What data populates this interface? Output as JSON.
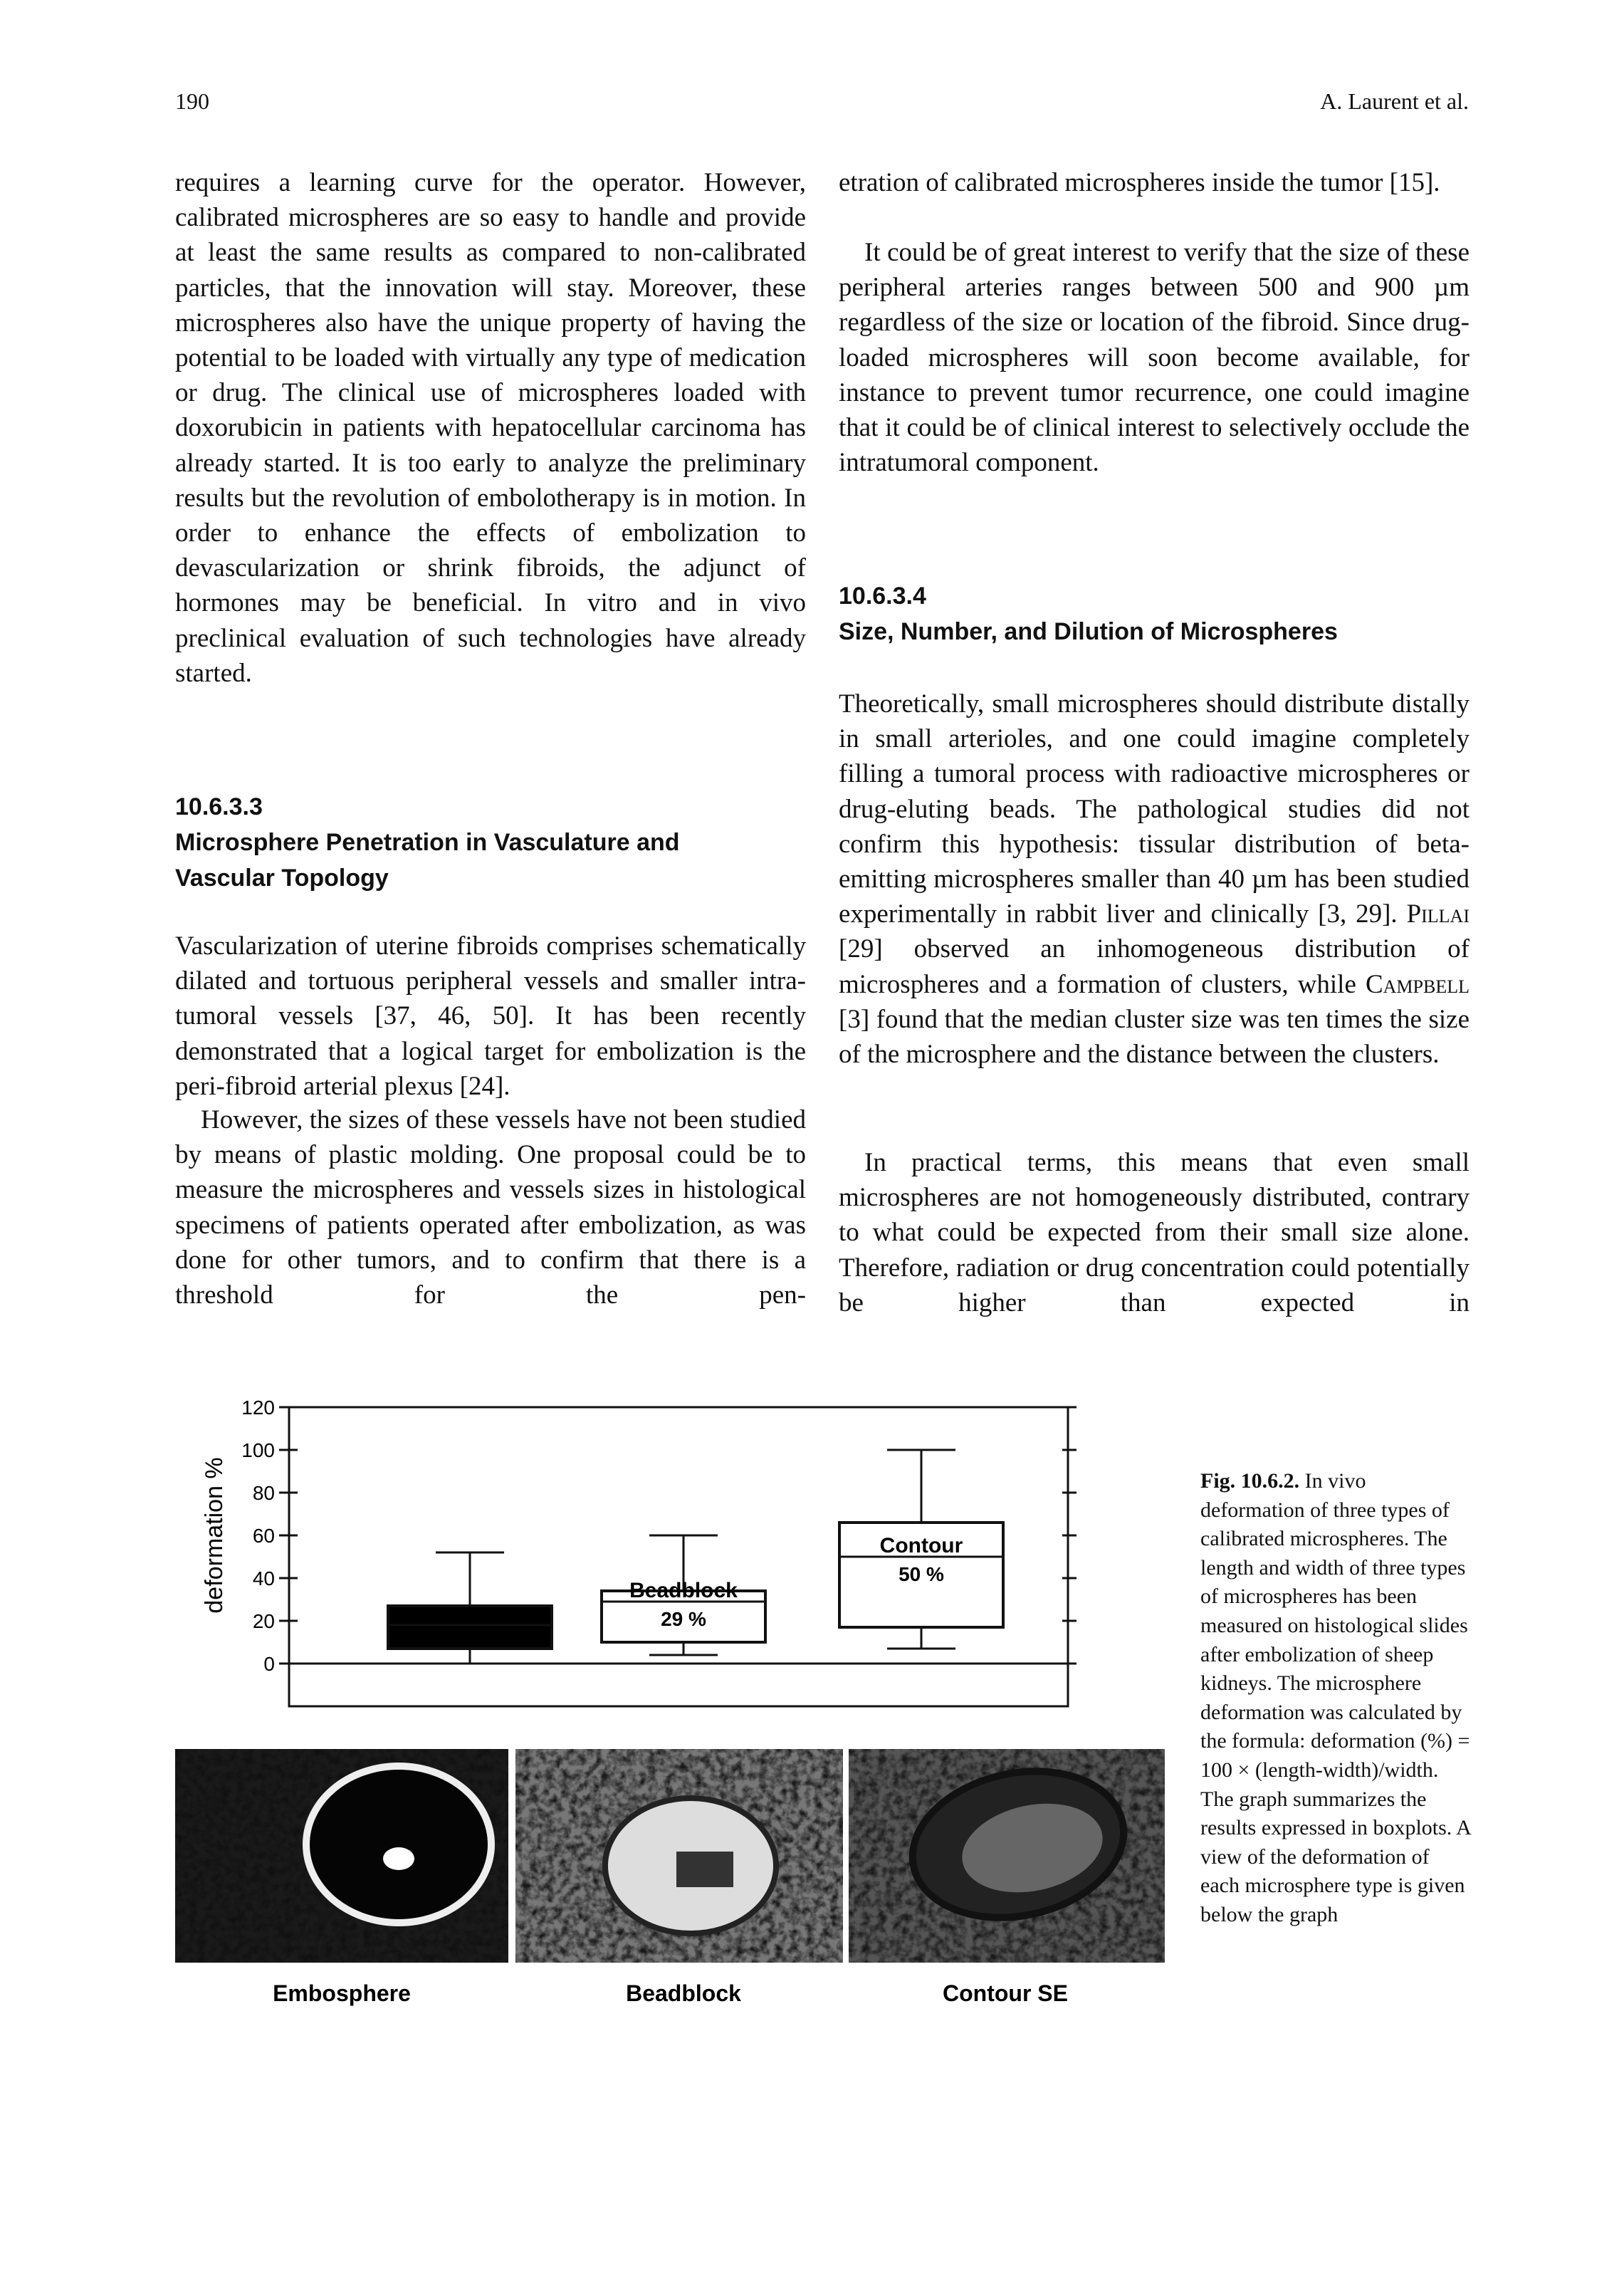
{
  "header": {
    "page_number": "190",
    "author": "A. Laurent et al."
  },
  "left_column": {
    "paragraphs": [
      "requires a learning curve for the operator. However, calibrated microspheres are so easy to handle and provide at least the same results as compared to non-calibrated particles, that the innovation will stay. Moreover, these microspheres also have the unique property of having the potential to be loaded with virtually any type of medication or drug. The clinical use of microspheres loaded with doxorubicin in patients with hepatocellular carcinoma has already started. It is too early to analyze the preliminary results but the revolution of embolotherapy is in motion. In order to enhance the effects of embolization to devascularization or shrink fibroids, the adjunct of hormones may be beneficial. In vitro and in vivo preclinical evaluation of such technologies have already started.",
      "Vascularization of uterine fibroids comprises schematically dilated and tortuous peripheral vessels and smaller intra-tumoral vessels [37, 46, 50]. It has been recently demonstrated that a logical target for embolization is the peri-fibroid arterial plexus [24].",
      "However, the sizes of these vessels have not been studied by means of plastic molding. One proposal could be to measure the microspheres and vessels sizes in histological specimens of patients operated after embolization, as was done for other tumors, and to confirm that there is a threshold for the pen-"
    ],
    "heading": {
      "number": "10.6.3.3",
      "title": "Microsphere Penetration in Vasculature and Vascular Topology"
    }
  },
  "right_column": {
    "paragraphs": [
      "etration of calibrated microspheres inside the tumor [15].",
      "It could be of great interest to verify that the size of these peripheral arteries ranges between 500 and 900 µm regardless of the size or location of the fibroid. Since drug-loaded microspheres will soon become available, for instance to prevent tumor recurrence, one could imagine that it could be of clinical interest to selectively occlude the intratumoral component.",
      {
        "parts": [
          "Theoretically, small microspheres should distribute distally in small arterioles, and one could imagine completely filling a tumoral process with radioactive microspheres or drug-eluting beads. The pathological studies did not confirm this hypothesis: tissular distribution of beta-emitting microspheres smaller than 40 µm has been studied experimentally in rabbit liver and clinically [3, 29]. ",
          "Pillai",
          " [29] observed an inhomogeneous distribution of microspheres and a formation of clusters, while ",
          "Campbell",
          " [3] found that the median cluster size was ten times the size of the microsphere and the distance between the clusters."
        ]
      },
      "In practical terms, this means that even small microspheres are not homogeneously distributed, contrary to what could be expected from their small size alone. Therefore, radiation or drug concentration could potentially be higher than expected in"
    ],
    "heading": {
      "number": "10.6.3.4",
      "title": "Size, Number, and Dilution of Microspheres"
    }
  },
  "figure": {
    "chart_data": {
      "type": "box",
      "ylabel": "deformation %",
      "categories": [
        "Embosphere",
        "Beadblock",
        "Contour SE"
      ],
      "low": [
        0,
        4,
        7
      ],
      "q1": [
        7,
        10,
        17
      ],
      "median": [
        18,
        29,
        50
      ],
      "q3": [
        27,
        34,
        66
      ],
      "high": [
        52,
        60,
        100
      ],
      "box_labels": [
        null,
        "Beadblock",
        "Contour"
      ],
      "value_labels": [
        null,
        "29 %",
        "50 %"
      ],
      "colors": [
        "#000000",
        "#ffffff",
        "#ffffff"
      ],
      "ylim": [
        -20,
        120
      ],
      "yticks": [
        0,
        20,
        40,
        60,
        80,
        100,
        120
      ]
    },
    "caption": {
      "label": "Fig. 10.6.2.",
      "text": "In vivo deformation of three types of calibrated microspheres. The length and width of three types of microspheres has been measured on histological slides after embolization of sheep kidneys. The microsphere deformation was calculated by the formula: deformation (%) = 100 × (length-width)/width. The graph summarizes the results expressed in boxplots. A view of the deformation of each microsphere type is given below the graph"
    }
  }
}
